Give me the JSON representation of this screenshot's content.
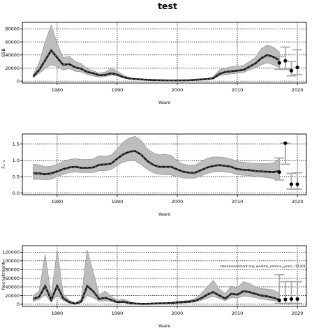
{
  "title": "test",
  "chart_data": [
    {
      "type": "line",
      "ylabel": "SSB",
      "xlabel": "Years",
      "xlim": [
        1974.2,
        2021.5
      ],
      "ylim": [
        -3000,
        90000
      ],
      "xticks": [
        1980,
        1990,
        2000,
        2010,
        2020
      ],
      "yticks": [
        0,
        20000,
        40000,
        60000,
        80000
      ],
      "ytick_labels": [
        "0",
        "20000",
        "40000",
        "60000",
        "80000"
      ],
      "grid": true,
      "x": [
        1976,
        1977,
        1978,
        1979,
        1980,
        1981,
        1982,
        1983,
        1984,
        1985,
        1986,
        1987,
        1988,
        1989,
        1990,
        1991,
        1992,
        1993,
        1994,
        1995,
        1996,
        1997,
        1998,
        1999,
        2000,
        2001,
        2002,
        2003,
        2004,
        2005,
        2006,
        2007,
        2008,
        2009,
        2010,
        2011,
        2012,
        2013,
        2014,
        2015,
        2016,
        2017
      ],
      "median": [
        7000,
        17000,
        32000,
        47000,
        36000,
        25000,
        26000,
        21000,
        19000,
        14000,
        12000,
        9000,
        9500,
        12000,
        10000,
        6000,
        4000,
        3000,
        2500,
        2000,
        1600,
        1300,
        1100,
        1000,
        1000,
        1100,
        1300,
        2000,
        2500,
        3000,
        4500,
        11000,
        14000,
        15000,
        16000,
        17000,
        22000,
        27000,
        35000,
        40000,
        37000,
        32000
      ],
      "lower": [
        5000,
        12000,
        19000,
        25000,
        22000,
        17000,
        19000,
        15000,
        14000,
        10000,
        8000,
        6000,
        7000,
        9000,
        8000,
        5000,
        3000,
        2200,
        1800,
        1500,
        1200,
        1000,
        800,
        700,
        700,
        800,
        1000,
        1400,
        1800,
        2200,
        3000,
        8000,
        10000,
        11000,
        12000,
        13000,
        17000,
        20000,
        25000,
        28000,
        25000,
        21000
      ],
      "upper": [
        10000,
        28000,
        60000,
        86000,
        58000,
        36000,
        38000,
        30000,
        27000,
        19000,
        16000,
        12000,
        14000,
        19000,
        16000,
        9000,
        5500,
        4000,
        3400,
        2800,
        2200,
        1800,
        1500,
        1400,
        1400,
        1500,
        1800,
        2800,
        3500,
        4200,
        6500,
        17000,
        20000,
        22000,
        23000,
        24000,
        30000,
        36000,
        50000,
        55000,
        52000,
        45000
      ],
      "projection": [
        {
          "x": 2017,
          "mid": 28000,
          "lo": 18000,
          "hi": 38000
        },
        {
          "x": 2018,
          "mid": 31000,
          "lo": 18000,
          "hi": 52000
        },
        {
          "x": 2019,
          "mid": 16000,
          "lo": 8000,
          "hi": 30000
        },
        {
          "x": 2020,
          "mid": 21000,
          "lo": 10000,
          "hi": 48000
        }
      ]
    },
    {
      "type": "line",
      "ylabel": "F₄₋₈",
      "xlabel": "Years",
      "xlim": [
        1974.2,
        2021.5
      ],
      "ylim": [
        -0.05,
        1.8
      ],
      "xticks": [
        1980,
        1990,
        2000,
        2010,
        2020
      ],
      "yticks": [
        0,
        0.5,
        1.0,
        1.5
      ],
      "ytick_labels": [
        "0.0",
        "0.5",
        "1.0",
        "1.5"
      ],
      "grid": true,
      "x": [
        1976,
        1977,
        1978,
        1979,
        1980,
        1981,
        1982,
        1983,
        1984,
        1985,
        1986,
        1987,
        1988,
        1989,
        1990,
        1991,
        1992,
        1993,
        1994,
        1995,
        1996,
        1997,
        1998,
        1999,
        2000,
        2001,
        2002,
        2003,
        2004,
        2005,
        2006,
        2007,
        2008,
        2009,
        2010,
        2011,
        2012,
        2013,
        2014,
        2015,
        2016,
        2017
      ],
      "median": [
        0.6,
        0.6,
        0.57,
        0.6,
        0.66,
        0.73,
        0.78,
        0.8,
        0.77,
        0.77,
        0.78,
        0.86,
        0.87,
        0.9,
        1.05,
        1.18,
        1.26,
        1.28,
        1.17,
        0.98,
        0.86,
        0.8,
        0.8,
        0.8,
        0.72,
        0.65,
        0.62,
        0.62,
        0.7,
        0.78,
        0.83,
        0.85,
        0.83,
        0.8,
        0.73,
        0.71,
        0.7,
        0.67,
        0.66,
        0.65,
        0.64,
        0.67
      ],
      "lower": [
        0.42,
        0.42,
        0.4,
        0.42,
        0.5,
        0.57,
        0.62,
        0.64,
        0.62,
        0.62,
        0.62,
        0.68,
        0.68,
        0.72,
        0.85,
        0.95,
        0.98,
        0.98,
        0.87,
        0.72,
        0.62,
        0.57,
        0.56,
        0.55,
        0.5,
        0.46,
        0.45,
        0.46,
        0.53,
        0.6,
        0.64,
        0.66,
        0.64,
        0.62,
        0.56,
        0.54,
        0.53,
        0.51,
        0.49,
        0.47,
        0.44,
        0.4
      ],
      "upper": [
        0.88,
        0.86,
        0.8,
        0.82,
        0.88,
        0.96,
        1.02,
        1.05,
        1.02,
        1.02,
        1.04,
        1.14,
        1.12,
        1.16,
        1.35,
        1.55,
        1.68,
        1.73,
        1.6,
        1.35,
        1.22,
        1.17,
        1.18,
        1.15,
        0.98,
        0.88,
        0.85,
        0.86,
        0.96,
        1.06,
        1.1,
        1.1,
        1.08,
        1.04,
        0.96,
        0.94,
        0.92,
        0.9,
        0.9,
        0.9,
        0.92,
        1.05
      ],
      "projection": [
        {
          "x": 2017,
          "mid": 0.64,
          "lo": 0.4,
          "hi": 1.07
        },
        {
          "x": 2018,
          "mid": 1.52,
          "lo": 0.88,
          "hi": 1.52
        },
        {
          "x": 2019,
          "mid": 0.27,
          "lo": 0.12,
          "hi": 0.6
        },
        {
          "x": 2020,
          "mid": 0.27,
          "lo": 0.12,
          "hi": 0.62
        }
      ]
    },
    {
      "type": "line",
      "ylabel": "Recruitment",
      "xlabel": "Years",
      "xlim": [
        1974.2,
        2021.5
      ],
      "ylim": [
        -5000,
        135000
      ],
      "xticks": [
        1980,
        1990,
        2000,
        2010,
        2020
      ],
      "yticks": [
        0,
        20000,
        40000,
        60000,
        80000,
        100000,
        120000
      ],
      "ytick_labels": [
        "0",
        "20000",
        "40000",
        "60000",
        "80000",
        "100000",
        "120000"
      ],
      "grid": true,
      "annotation": "stockassessment.org, westms_nimove_years, r11401",
      "x": [
        1976,
        1977,
        1978,
        1979,
        1980,
        1981,
        1982,
        1983,
        1984,
        1985,
        1986,
        1987,
        1988,
        1989,
        1990,
        1991,
        1992,
        1993,
        1994,
        1995,
        1996,
        1997,
        1998,
        1999,
        2000,
        2001,
        2002,
        2003,
        2004,
        2005,
        2006,
        2007,
        2008,
        2009,
        2010,
        2011,
        2012,
        2013,
        2014,
        2015,
        2016,
        2017
      ],
      "median": [
        12000,
        17000,
        42000,
        10000,
        42000,
        14000,
        5000,
        1000,
        6000,
        42000,
        30000,
        12000,
        15000,
        10000,
        5000,
        6000,
        3000,
        1500,
        1000,
        1000,
        1500,
        2000,
        2000,
        2500,
        4000,
        5000,
        6000,
        8000,
        14000,
        22000,
        28000,
        20000,
        13000,
        24000,
        22000,
        30000,
        28000,
        24000,
        20000,
        18000,
        15000,
        10000
      ],
      "lower": [
        7000,
        11000,
        22000,
        5000,
        20000,
        8000,
        3000,
        500,
        3000,
        20000,
        15000,
        7000,
        8000,
        6000,
        3000,
        3500,
        1800,
        800,
        600,
        600,
        900,
        1200,
        1200,
        1600,
        2500,
        3000,
        3500,
        5000,
        9000,
        14000,
        18000,
        13000,
        8000,
        15000,
        14000,
        19000,
        18000,
        15000,
        12000,
        10000,
        8000,
        5000
      ],
      "upper": [
        20000,
        30000,
        115000,
        20000,
        125000,
        25000,
        9000,
        2500,
        12000,
        125000,
        75000,
        22000,
        30000,
        18000,
        9000,
        12000,
        6000,
        3000,
        2000,
        2000,
        3000,
        3500,
        3500,
        4500,
        6500,
        7500,
        9000,
        13000,
        25000,
        40000,
        55000,
        35000,
        25000,
        42000,
        38000,
        52000,
        48000,
        40000,
        36000,
        35000,
        33000,
        25000
      ],
      "projection": [
        {
          "x": 2017,
          "mid": 9000,
          "lo": 2000,
          "hi": 68000
        },
        {
          "x": 2018,
          "mid": 11000,
          "lo": 2000,
          "hi": 52000
        },
        {
          "x": 2019,
          "mid": 12000,
          "lo": 2000,
          "hi": 52000
        },
        {
          "x": 2020,
          "mid": 12000,
          "lo": 2000,
          "hi": 52000
        }
      ]
    }
  ]
}
